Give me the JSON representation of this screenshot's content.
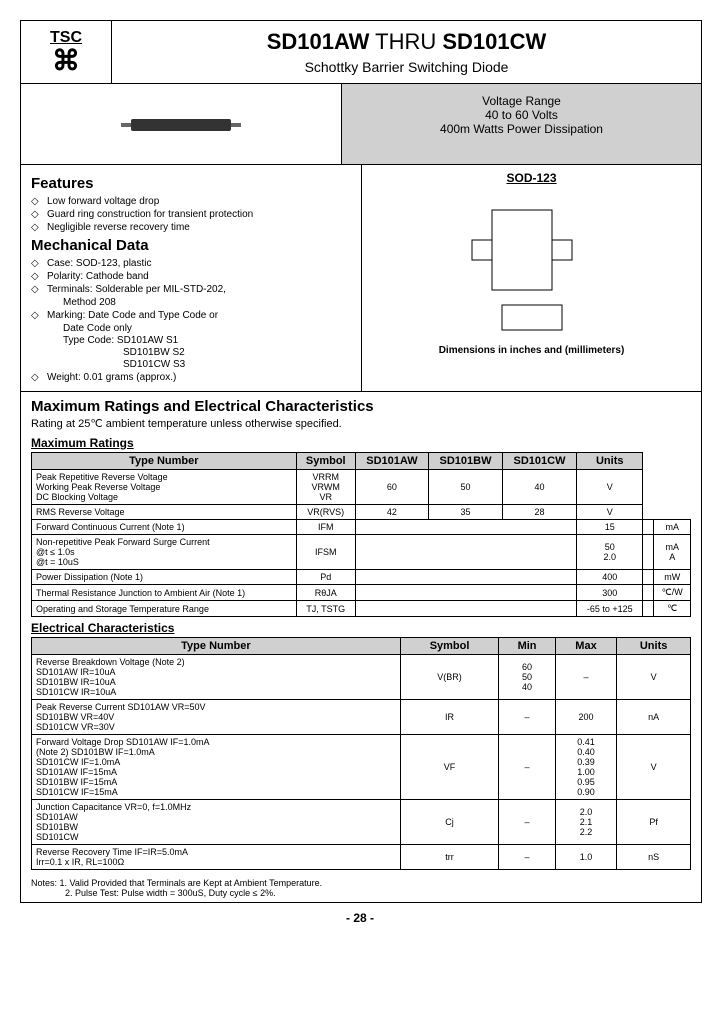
{
  "header": {
    "logo_top": "TSC",
    "title_a": "SD101AW",
    "title_mid": " THRU ",
    "title_b": "SD101CW",
    "subtitle": "Schottky Barrier Switching Diode"
  },
  "vrange": {
    "l1": "Voltage Range",
    "l2": "40 to 60 Volts",
    "l3": "400m Watts Power Dissipation"
  },
  "features": {
    "h": "Features",
    "items": [
      "Low forward voltage drop",
      "Guard ring construction for transient protection",
      "Negligible reverse recovery time"
    ]
  },
  "mech": {
    "h": "Mechanical Data",
    "items": [
      "Case: SOD-123, plastic",
      "Polarity: Cathode band",
      "Terminals: Solderable per MIL-STD-202,",
      "Marking: Date Code and Type Code or"
    ],
    "sub1": "Method 208",
    "sub2": "Date Code only",
    "types": [
      "Type Code: SD101AW    S1",
      "SD101BW    S2",
      "SD101CW    S3"
    ],
    "weight": "Weight: 0.01 grams (approx.)"
  },
  "sod": {
    "h": "SOD-123",
    "dim": "Dimensions in inches and (millimeters)"
  },
  "max": {
    "h": "Maximum Ratings and Electrical Characteristics",
    "sub": "Rating at 25℃ ambient temperature unless otherwise specified.",
    "t1": "Maximum Ratings"
  },
  "t1": {
    "cols": [
      "Type Number",
      "Symbol",
      "SD101AW",
      "SD101BW",
      "SD101CW",
      "Units"
    ],
    "rows": [
      [
        "Peak Repetitive Reverse Voltage\nWorking Peak Reverse Voltage\nDC Blocking Voltage",
        "VRRM\nVRWM\nVR",
        "60",
        "50",
        "40",
        "V"
      ],
      [
        "RMS Reverse Voltage",
        "VR(RVS)",
        "42",
        "35",
        "28",
        "V"
      ],
      [
        "Forward Continuous Current (Note 1)",
        "IFM",
        "",
        "15",
        "",
        "mA"
      ],
      [
        "Non-repetitive Peak Forward Surge Current\n@t ≤ 1.0s\n@t = 10uS",
        "IFSM",
        "",
        "50\n2.0",
        "",
        "mA\nA"
      ],
      [
        "Power Dissipation (Note 1)",
        "Pd",
        "",
        "400",
        "",
        "mW"
      ],
      [
        "Thermal Resistance Junction to Ambient Air (Note 1)",
        "RθJA",
        "",
        "300",
        "",
        "℃/W"
      ],
      [
        "Operating and Storage Temperature Range",
        "TJ, TSTG",
        "",
        "-65 to +125",
        "",
        "℃"
      ]
    ]
  },
  "ec": {
    "h": "Electrical Characteristics"
  },
  "t2": {
    "cols": [
      "Type Number",
      "Symbol",
      "Min",
      "Max",
      "Units"
    ],
    "rows": [
      [
        "Reverse Breakdown Voltage (Note 2)\nSD101AW   IR=10uA\nSD101BW   IR=10uA\nSD101CW   IR=10uA",
        "V(BR)",
        "60\n50\n40",
        "–",
        "V"
      ],
      [
        "Peak Reverse Current        SD101AW    VR=50V\nSD101BW   VR=40V\nSD101CW   VR=30V",
        "IR",
        "–",
        "200",
        "nA"
      ],
      [
        "Forward Voltage Drop    SD101AW    IF=1.0mA\n(Note 2)                        SD101BW    IF=1.0mA\nSD101CW   IF=1.0mA\nSD101AW   IF=15mA\nSD101BW   IF=15mA\nSD101CW   IF=15mA",
        "VF",
        "–",
        "0.41\n0.40\n0.39\n1.00\n0.95\n0.90",
        "V"
      ],
      [
        "Junction Capacitance     VR=0, f=1.0MHz\nSD101AW\nSD101BW\nSD101CW",
        "Cj",
        "–",
        "2.0\n2.1\n2.2",
        "Pf"
      ],
      [
        "Reverse Recovery Time    IF=IR=5.0mA\nIrr=0.1 x IR, RL=100Ω",
        "trr",
        "–",
        "1.0",
        "nS"
      ]
    ]
  },
  "notes": {
    "l1": "Notes: 1. Valid Provided that Terminals are Kept at Ambient Temperature.",
    "l2": "2. Pulse Test: Pulse width = 300uS, Duty cycle ≤ 2%."
  },
  "page": "- 28 -"
}
